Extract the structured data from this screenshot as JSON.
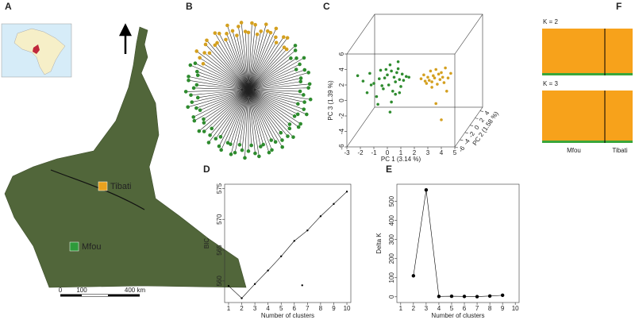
{
  "map": {
    "label": "A",
    "sites": [
      {
        "name": "Tibati",
        "color": "#e8a21e"
      },
      {
        "name": "Mfou",
        "color": "#2e9a3a"
      }
    ],
    "scale": [
      "0",
      "100",
      "400 km"
    ]
  },
  "tree": {
    "label": "B",
    "colors": [
      "#d4a020",
      "#2e8b2e"
    ]
  },
  "structure": {
    "label": "F",
    "plots": [
      {
        "label": "K = 2"
      },
      {
        "label": "K = 3"
      }
    ],
    "groups": [
      "Mfou",
      "Tibati"
    ],
    "colors": [
      "#f7a21b",
      "#3aa63a"
    ]
  },
  "chart_data": [
    {
      "type": "scatter",
      "label": "C",
      "xlabel": "PC 1 (3.14 %)",
      "ylabel": "PC 3 (1.39 %)",
      "zlabel": "PC 2 (1.58 %)",
      "xlim": [
        -3,
        5
      ],
      "ylim": [
        -6,
        6
      ],
      "zlim": [
        -6,
        5
      ],
      "xticks": [
        -3,
        -2,
        -1,
        0,
        1,
        2,
        3,
        4,
        5
      ],
      "yticks": [
        -6,
        -4,
        -2,
        0,
        2,
        4,
        6
      ],
      "zticks": [
        -6,
        -4,
        -2,
        0,
        2,
        4
      ],
      "series": [
        {
          "color": "#2e8b2e",
          "x": [
            -2.2,
            -1.8,
            -1.5,
            -1.3,
            -1.0,
            -0.8,
            -0.6,
            -0.5,
            -0.3,
            -0.2,
            0,
            0.1,
            0.2,
            0.3,
            0.4,
            0.5,
            0.6,
            0.7,
            0.8,
            0.9,
            1.0,
            1.1,
            1.2,
            1.4,
            -0.7,
            0.2,
            0.6,
            -0.1,
            0.9,
            -1.2,
            0.3,
            1.6,
            -0.4,
            0.8
          ],
          "values": [
            3.2,
            2.5,
            1.0,
            3.5,
            2.2,
            0.5,
            2.8,
            3.9,
            1.5,
            2.9,
            3.3,
            2.0,
            4.6,
            3.8,
            1.2,
            3.0,
            2.4,
            3.6,
            4.1,
            2.7,
            1.8,
            3.4,
            2.6,
            3.1,
            -0.5,
            -1.5,
            0.8,
            4.0,
            1.0,
            2.0,
            -0.2,
            3.0,
            1.9,
            5.0
          ]
        },
        {
          "color": "#d4a020",
          "x": [
            2.5,
            2.7,
            2.9,
            3.0,
            3.1,
            3.2,
            3.3,
            3.4,
            3.5,
            3.6,
            3.7,
            3.8,
            3.9,
            4.0,
            4.1,
            4.2,
            4.3,
            4.5,
            4.7,
            3.3,
            3.6,
            4.4,
            4.0,
            2.8
          ],
          "values": [
            2.8,
            3.3,
            2.2,
            3.0,
            2.6,
            3.8,
            2.4,
            3.2,
            2.9,
            4.0,
            2.1,
            3.4,
            2.7,
            3.6,
            3.0,
            2.3,
            4.2,
            2.9,
            3.5,
            1.7,
            -0.4,
            1.2,
            -2.5,
            2.5
          ]
        }
      ]
    },
    {
      "type": "line",
      "label": "D",
      "xlabel": "Number of clusters",
      "ylabel": "BIC",
      "xlim": [
        0.7,
        10.3
      ],
      "ylim": [
        556.5,
        575.7
      ],
      "xticks": [
        1,
        2,
        3,
        4,
        5,
        6,
        7,
        8,
        9,
        10
      ],
      "yticks": [
        560,
        565,
        570,
        575
      ],
      "series": [
        {
          "color": "#000000",
          "line": true,
          "x": [
            1,
            2,
            3,
            4,
            5,
            6,
            7,
            8,
            9,
            10
          ],
          "values": [
            559.2,
            557.2,
            559.5,
            561.7,
            564,
            566.5,
            568.2,
            570.5,
            572.5,
            574.5
          ]
        },
        {
          "color": "#000000",
          "line": false,
          "x": [
            6.6
          ],
          "values": [
            559.3
          ]
        }
      ]
    },
    {
      "type": "line",
      "label": "E",
      "xlabel": "Number of clusters",
      "ylabel": "Delta K",
      "xlim": [
        0.7,
        10.3
      ],
      "ylim": [
        -30,
        590
      ],
      "xticks": [
        1,
        2,
        3,
        4,
        5,
        6,
        7,
        8,
        9,
        10
      ],
      "yticks": [
        0,
        100,
        200,
        300,
        400,
        500
      ],
      "series": [
        {
          "color": "#000000",
          "line": true,
          "x": [
            2,
            3,
            4,
            5,
            6,
            7,
            8,
            9
          ],
          "values": [
            110,
            560,
            2,
            3,
            2,
            1,
            4,
            8
          ]
        }
      ]
    }
  ]
}
